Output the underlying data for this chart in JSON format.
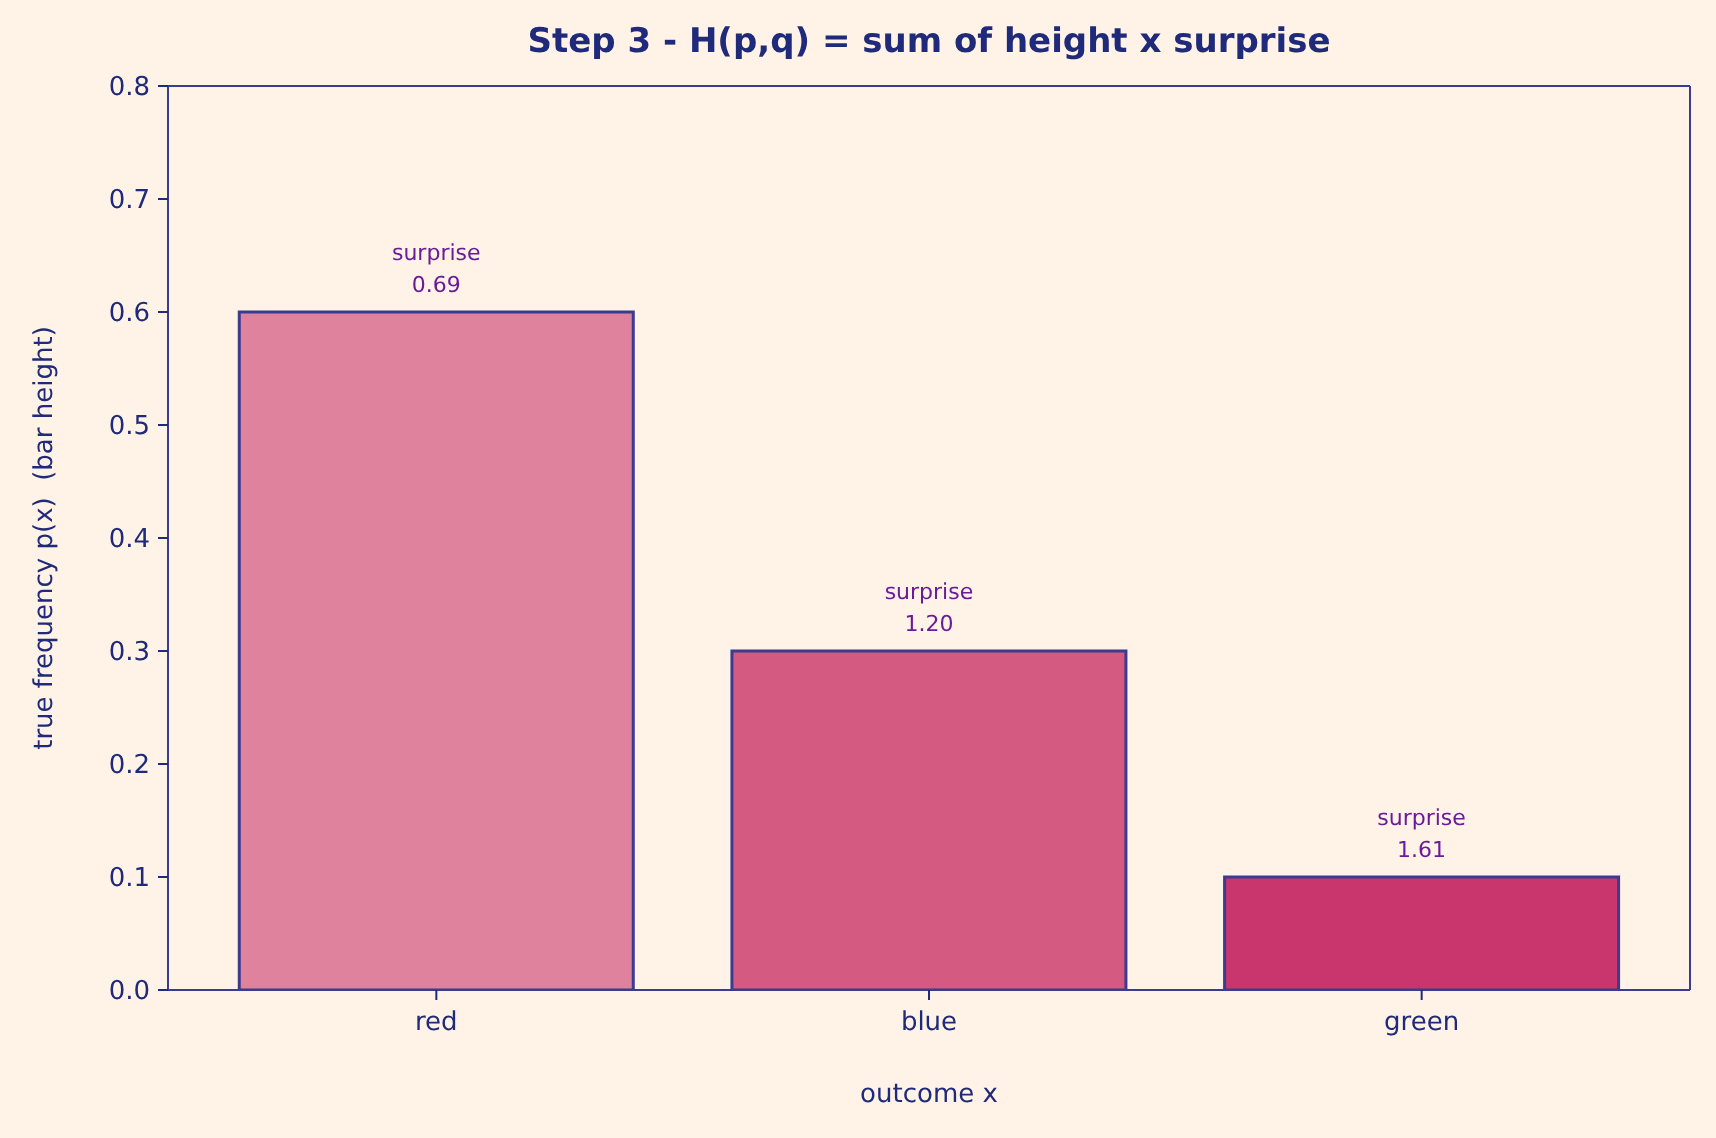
{
  "chart_data": {
    "type": "bar",
    "title": "Step 3 - H(p,q) = sum of height x surprise",
    "xlabel": "outcome x",
    "ylabel": "true frequency p(x)  (bar height)",
    "categories": [
      "red",
      "blue",
      "green"
    ],
    "values": [
      0.6,
      0.3,
      0.1
    ],
    "colors": [
      "#df829d",
      "#d55a82",
      "#c9366e"
    ],
    "value_labels": [
      "surprise\n0.69",
      "surprise\n1.20",
      "surprise\n1.61"
    ],
    "ylim": [
      0,
      0.8
    ],
    "yticks": [
      {
        "value": 0,
        "label": "0.0"
      },
      0.1,
      0.2,
      0.3,
      0.4,
      0.5,
      0.6,
      0.7,
      0.8
    ]
  }
}
